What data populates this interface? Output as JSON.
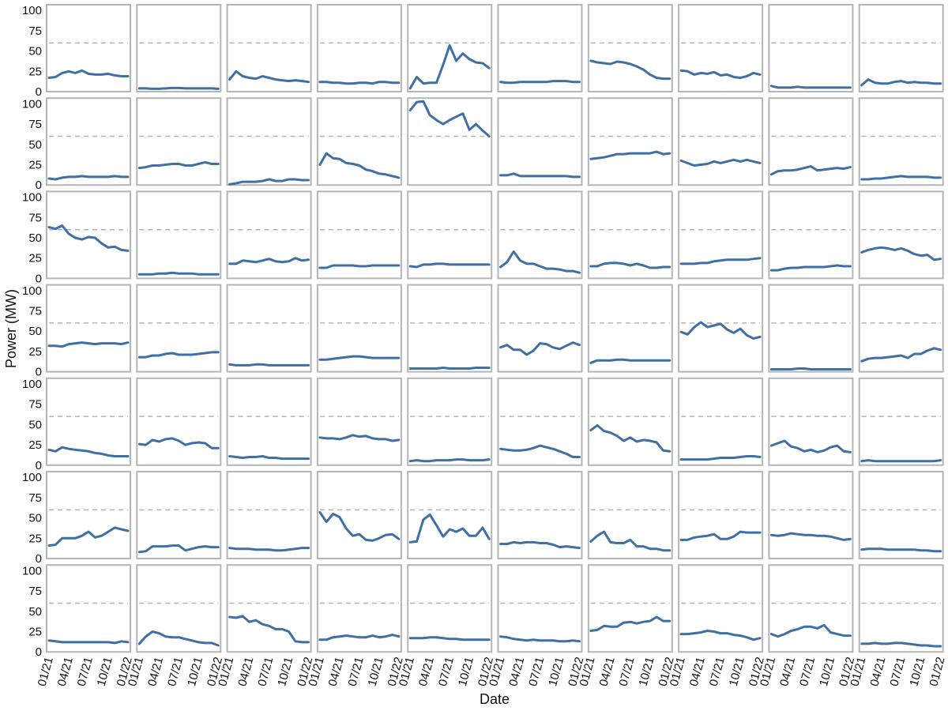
{
  "chart_data": {
    "type": "line",
    "facet_grid": {
      "rows": 7,
      "cols": 10
    },
    "xlabel": "Date",
    "ylabel": "Power (MW)",
    "ylim": [
      0,
      107
    ],
    "yticks": [
      0,
      25,
      50,
      75,
      100
    ],
    "x_tick_labels": [
      "01/21",
      "04/21",
      "07/21",
      "10/21",
      "01/22"
    ],
    "reference_line_y": 60,
    "months": 13,
    "line_color": "#3f6fa5",
    "reference_line_color": "#b3b3b3",
    "panel_border_color": "#b5b5b5",
    "grid": false,
    "legend": "none",
    "panels": [
      [
        17,
        18,
        23,
        25,
        23,
        26,
        22,
        21,
        21,
        22,
        20,
        19,
        19
      ],
      [
        4,
        4,
        3.5,
        3.5,
        4,
        4.5,
        4.5,
        4,
        4,
        4,
        4,
        4,
        3.5
      ],
      [
        15,
        25,
        19,
        17,
        16,
        19,
        17,
        15,
        14,
        13,
        14,
        13,
        12
      ],
      [
        12,
        12,
        11,
        11,
        10,
        10,
        11,
        11,
        10,
        12,
        12,
        11,
        11
      ],
      [
        4,
        18,
        10,
        11,
        11,
        33,
        57,
        38,
        47,
        40,
        36,
        35,
        29
      ],
      [
        12,
        11,
        11,
        12,
        12,
        12,
        12,
        12,
        13,
        13,
        13,
        12,
        12
      ],
      [
        38,
        36,
        35,
        34,
        37,
        36,
        34,
        31,
        27,
        21,
        17,
        16,
        16
      ],
      [
        26,
        25,
        21,
        23,
        22,
        24,
        20,
        21,
        18,
        17,
        19,
        23,
        21
      ],
      [
        7,
        5,
        5,
        5,
        6,
        5,
        5,
        5,
        5,
        5,
        5,
        5,
        5
      ],
      [
        8,
        15,
        11,
        10,
        10,
        12,
        13,
        11,
        12,
        11,
        11,
        10,
        10
      ],
      [
        8,
        7,
        9,
        10,
        10,
        11,
        10,
        10,
        10,
        10,
        11,
        10,
        10
      ],
      [
        21,
        22,
        24,
        24,
        25,
        26,
        26,
        24,
        24,
        26,
        28,
        26,
        26
      ],
      [
        1,
        2,
        4,
        4,
        4,
        5,
        7,
        5,
        5,
        7,
        7,
        6,
        6
      ],
      [
        25,
        39,
        33,
        32,
        27,
        26,
        24,
        19,
        17,
        14,
        13,
        11,
        9
      ],
      [
        92,
        102,
        103,
        86,
        80,
        75,
        80,
        84,
        88,
        68,
        75,
        67,
        60
      ],
      [
        12,
        12,
        14,
        11,
        11,
        11,
        11,
        11,
        11,
        11,
        11,
        10,
        10
      ],
      [
        32,
        33,
        34,
        36,
        38,
        38,
        39,
        39,
        39,
        39,
        41,
        38,
        39
      ],
      [
        30,
        27,
        24,
        25,
        26,
        29,
        27,
        29,
        31,
        29,
        31,
        29,
        27
      ],
      [
        13,
        17,
        18,
        18,
        19,
        21,
        23,
        18,
        19,
        20,
        21,
        20,
        22
      ],
      [
        7,
        7,
        8,
        8,
        9,
        10,
        11,
        10,
        10,
        10,
        10,
        9,
        9
      ],
      [
        63,
        61,
        65,
        55,
        50,
        48,
        51,
        50,
        43,
        38,
        39,
        35,
        34
      ],
      [
        5,
        5,
        5,
        6,
        6,
        7,
        6,
        6,
        6,
        5,
        5,
        5,
        5
      ],
      [
        18,
        18,
        22,
        21,
        20,
        22,
        24,
        21,
        20,
        21,
        25,
        22,
        23
      ],
      [
        13,
        13,
        16,
        16,
        16,
        16,
        15,
        15,
        16,
        16,
        16,
        16,
        16
      ],
      [
        15,
        14,
        17,
        17,
        18,
        18,
        17,
        17,
        17,
        17,
        17,
        17,
        17
      ],
      [
        14,
        20,
        33,
        22,
        18,
        18,
        15,
        12,
        12,
        11,
        9,
        9,
        7
      ],
      [
        15,
        15,
        18,
        19,
        19,
        18,
        16,
        18,
        16,
        13,
        13,
        14,
        14
      ],
      [
        18,
        18,
        18,
        19,
        19,
        21,
        22,
        23,
        23,
        23,
        23,
        24,
        25
      ],
      [
        10,
        10,
        12,
        13,
        13,
        14,
        14,
        14,
        14,
        15,
        16,
        15,
        15
      ],
      [
        32,
        35,
        37,
        38,
        37,
        35,
        37,
        34,
        30,
        28,
        29,
        23,
        24
      ],
      [
        32,
        32,
        31,
        34,
        35,
        36,
        35,
        34,
        35,
        35,
        35,
        34,
        36
      ],
      [
        18,
        18,
        20,
        20,
        22,
        23,
        21,
        21,
        21,
        22,
        23,
        24,
        24
      ],
      [
        9,
        8,
        8,
        8,
        9,
        9,
        8,
        8,
        8,
        8,
        8,
        8,
        8
      ],
      [
        15,
        15,
        16,
        17,
        18,
        19,
        19,
        18,
        17,
        17,
        17,
        17,
        17
      ],
      [
        4,
        4,
        4,
        4,
        4,
        5,
        4,
        4,
        4,
        4,
        5,
        5,
        5
      ],
      [
        30,
        33,
        27,
        27,
        21,
        26,
        35,
        34,
        30,
        28,
        32,
        36,
        33
      ],
      [
        11,
        14,
        14,
        14,
        15,
        15,
        14,
        14,
        14,
        14,
        14,
        14,
        14
      ],
      [
        49,
        46,
        55,
        61,
        55,
        57,
        59,
        52,
        48,
        53,
        45,
        41,
        43
      ],
      [
        3,
        3,
        3,
        3,
        4,
        4,
        3,
        3,
        3,
        3,
        3,
        3,
        3
      ],
      [
        13,
        16,
        17,
        17,
        18,
        19,
        20,
        17,
        22,
        22,
        26,
        29,
        27
      ],
      [
        19,
        17,
        22,
        20,
        19,
        18,
        17,
        15,
        14,
        12,
        11,
        11,
        11
      ],
      [
        26,
        25,
        31,
        29,
        32,
        33,
        30,
        25,
        27,
        28,
        27,
        21,
        21
      ],
      [
        11,
        10,
        9,
        10,
        10,
        11,
        9,
        9,
        8,
        8,
        8,
        8,
        8
      ],
      [
        34,
        33,
        33,
        32,
        34,
        37,
        35,
        36,
        33,
        32,
        32,
        30,
        31
      ],
      [
        5,
        6,
        5,
        5,
        6,
        6,
        6,
        7,
        7,
        6,
        6,
        6,
        7
      ],
      [
        20,
        19,
        18,
        18,
        19,
        21,
        24,
        22,
        20,
        17,
        14,
        10,
        10
      ],
      [
        43,
        49,
        42,
        40,
        36,
        30,
        34,
        29,
        31,
        30,
        28,
        18,
        17
      ],
      [
        7,
        7,
        7,
        7,
        7,
        8,
        9,
        9,
        9,
        10,
        11,
        11,
        10
      ],
      [
        24,
        27,
        30,
        23,
        21,
        17,
        19,
        16,
        18,
        22,
        24,
        17,
        16
      ],
      [
        5,
        6,
        5,
        5,
        5,
        5,
        5,
        5,
        5,
        5,
        5,
        5,
        6
      ],
      [
        16,
        17,
        25,
        25,
        25,
        28,
        33,
        26,
        28,
        33,
        38,
        36,
        34
      ],
      [
        8,
        9,
        15,
        15,
        15,
        16,
        16,
        10,
        12,
        14,
        15,
        14,
        14
      ],
      [
        13,
        12,
        12,
        12,
        11,
        11,
        11,
        10,
        10,
        11,
        12,
        13,
        13
      ],
      [
        57,
        45,
        55,
        51,
        37,
        28,
        30,
        23,
        22,
        25,
        29,
        30,
        24
      ],
      [
        20,
        21,
        48,
        54,
        41,
        27,
        36,
        33,
        37,
        28,
        28,
        38,
        24
      ],
      [
        18,
        18,
        20,
        19,
        20,
        20,
        19,
        19,
        17,
        14,
        15,
        14,
        13
      ],
      [
        21,
        28,
        33,
        20,
        19,
        19,
        23,
        15,
        15,
        12,
        12,
        10,
        10
      ],
      [
        23,
        23,
        26,
        27,
        28,
        30,
        24,
        24,
        27,
        33,
        32,
        32,
        32
      ],
      [
        29,
        28,
        29,
        31,
        30,
        29,
        29,
        28,
        28,
        27,
        25,
        23,
        24
      ],
      [
        11,
        12,
        12,
        12,
        11,
        11,
        11,
        11,
        11,
        10,
        10,
        9,
        9
      ],
      [
        14,
        13,
        12,
        12,
        12,
        12,
        12,
        12,
        12,
        12,
        11,
        13,
        12
      ],
      [
        10,
        19,
        25,
        23,
        19,
        18,
        18,
        16,
        14,
        12,
        11,
        11,
        8
      ],
      [
        43,
        42,
        44,
        37,
        39,
        34,
        32,
        28,
        28,
        25,
        13,
        12,
        12
      ],
      [
        15,
        15,
        18,
        19,
        20,
        19,
        18,
        18,
        20,
        18,
        19,
        21,
        19
      ],
      [
        17,
        17,
        17,
        18,
        18,
        17,
        16,
        16,
        15,
        15,
        15,
        15,
        15
      ],
      [
        19,
        18,
        16,
        15,
        14,
        15,
        14,
        14,
        14,
        13,
        13,
        14,
        13
      ],
      [
        26,
        27,
        32,
        31,
        31,
        36,
        37,
        35,
        37,
        38,
        43,
        38,
        38
      ],
      [
        22,
        22,
        23,
        24,
        26,
        25,
        23,
        23,
        21,
        20,
        18,
        15,
        17
      ],
      [
        22,
        19,
        22,
        26,
        28,
        31,
        31,
        29,
        33,
        24,
        22,
        20,
        20
      ],
      [
        10,
        10,
        11,
        10,
        10,
        11,
        11,
        10,
        9,
        8,
        8,
        7,
        7
      ]
    ]
  }
}
